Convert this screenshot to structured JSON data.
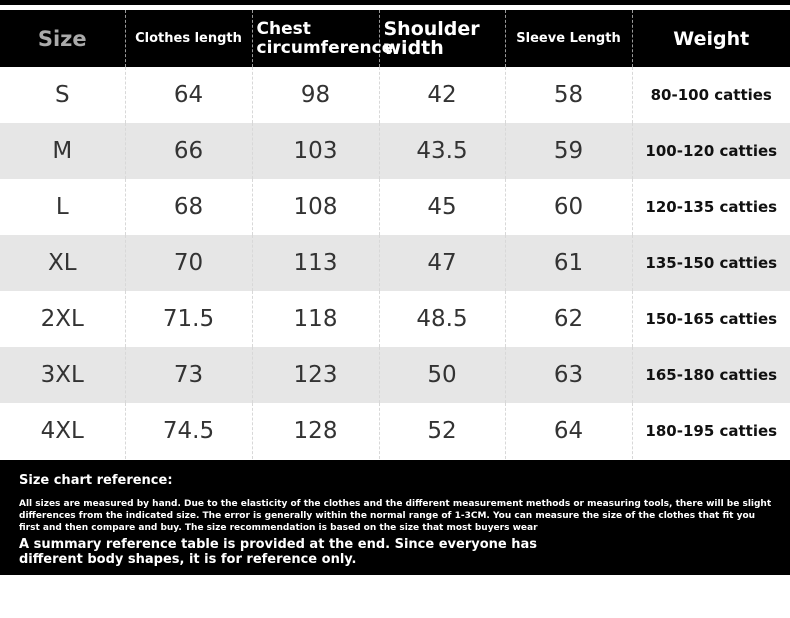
{
  "table": {
    "headers": [
      "Size",
      "Clothes length",
      "Chest circumference",
      "Shoulder width",
      "Sleeve Length",
      "Weight"
    ],
    "rows": [
      [
        "S",
        64,
        98,
        42,
        58,
        "80-100 catties"
      ],
      [
        "M",
        66,
        103,
        43.5,
        59,
        "100-120 catties"
      ],
      [
        "L",
        68,
        108,
        45,
        60,
        "120-135 catties"
      ],
      [
        "XL",
        70,
        113,
        47,
        61,
        "135-150 catties"
      ],
      [
        "2XL",
        71.5,
        118,
        48.5,
        62,
        "150-165 catties"
      ],
      [
        "3XL",
        73,
        123,
        50,
        63,
        "165-180 catties"
      ],
      [
        "4XL",
        74.5,
        128,
        52,
        64,
        "180-195 catties"
      ]
    ]
  },
  "note": {
    "title": "Size chart reference:",
    "body": "All sizes are measured by hand. Due to the elasticity of the clothes and the different measurement methods or measuring tools, there will be slight differences from the indicated size. The error is generally within the normal range of 1-3CM. You can measure the size of the clothes that fit you first and then compare and buy. The size recommendation is based on the size that most buyers wear",
    "summary": "A summary reference table is provided at the end. Since everyone has different body shapes, it is for reference only."
  }
}
